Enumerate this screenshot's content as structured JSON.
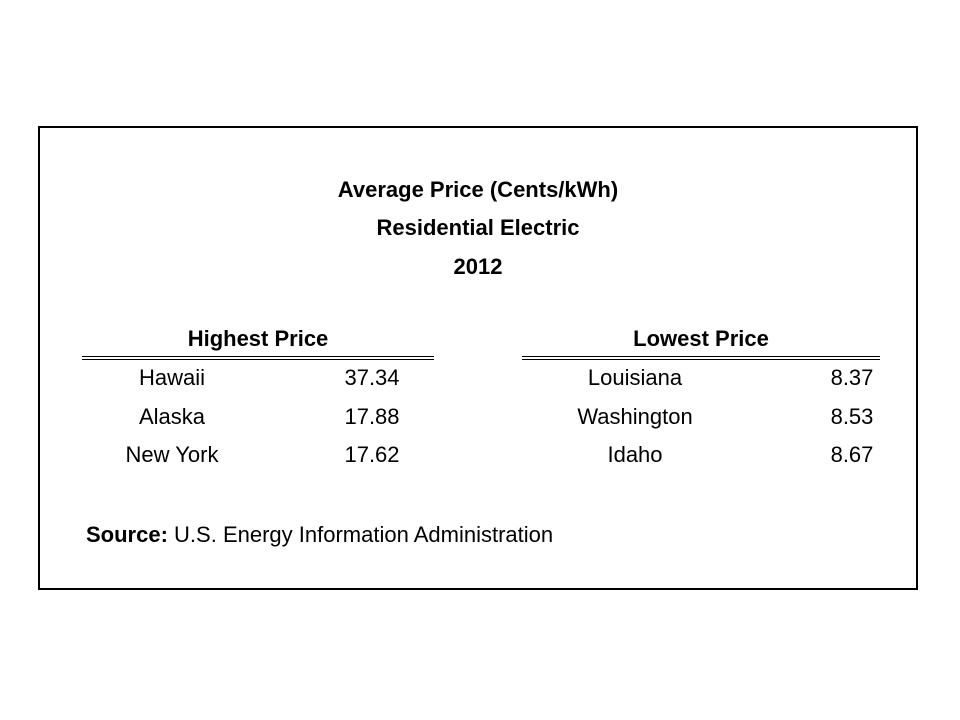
{
  "title": {
    "line1": "Average Price (Cents/kWh)",
    "line2": "Residential Electric",
    "line3": "2012"
  },
  "highest": {
    "heading": "Highest Price",
    "rows": [
      {
        "state": "Hawaii",
        "price": "37.34"
      },
      {
        "state": "Alaska",
        "price": "17.88"
      },
      {
        "state": "New York",
        "price": "17.62"
      }
    ]
  },
  "lowest": {
    "heading": "Lowest Price",
    "rows": [
      {
        "state": "Louisiana",
        "price": "8.37"
      },
      {
        "state": "Washington",
        "price": "8.53"
      },
      {
        "state": "Idaho",
        "price": "8.67"
      }
    ]
  },
  "source": {
    "label": "Source:",
    "text": "U.S. Energy Information Administration"
  }
}
